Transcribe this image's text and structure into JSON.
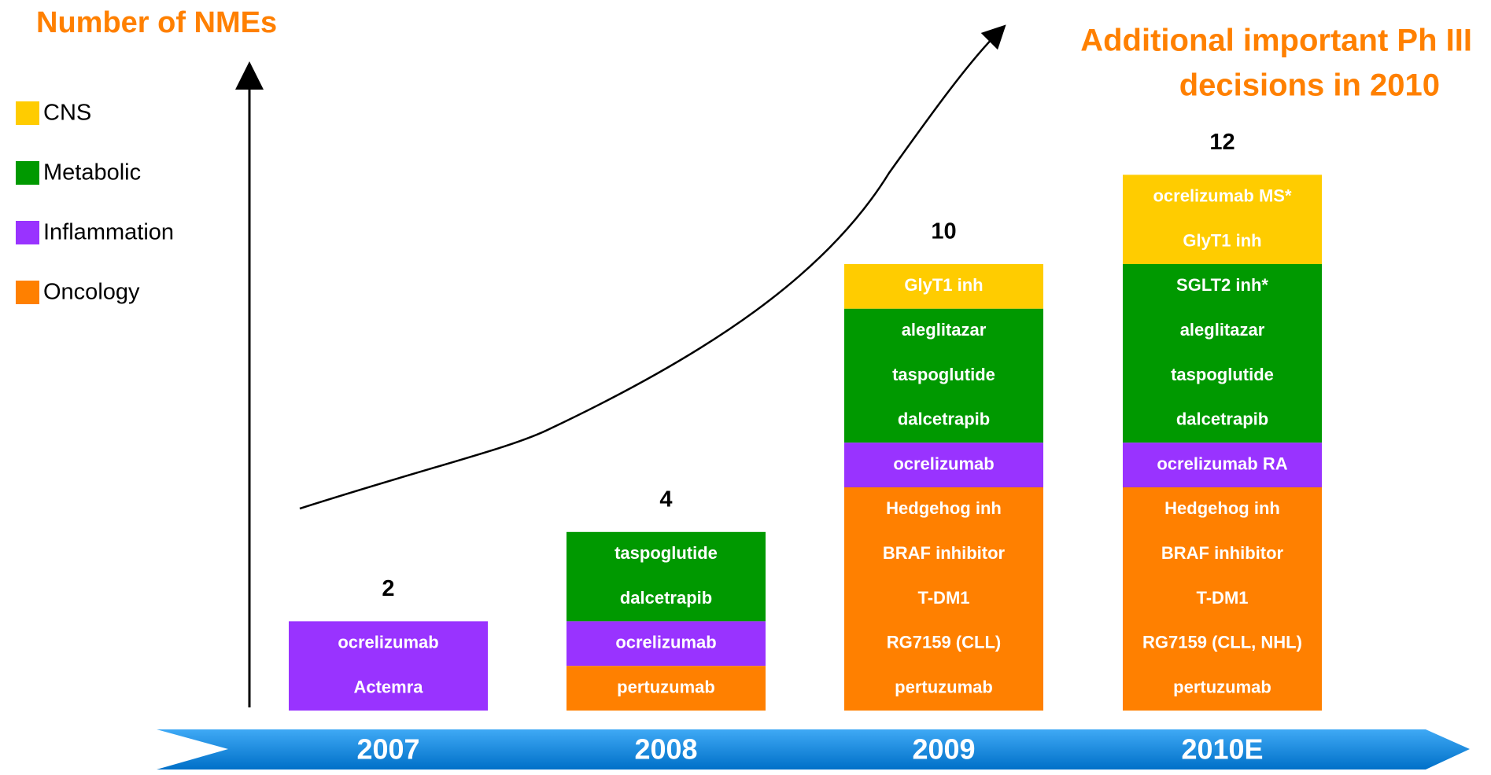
{
  "title": "Number of NMEs",
  "annotation": [
    "Additional important Ph III",
    "decisions in 2010"
  ],
  "legend": [
    {
      "label": "CNS",
      "color": "#ffcc00"
    },
    {
      "label": "Metabolic",
      "color": "#009900"
    },
    {
      "label": "Inflammation",
      "color": "#9933ff"
    },
    {
      "label": "Oncology",
      "color": "#ff8000"
    }
  ],
  "columns": [
    {
      "year": "2007",
      "total": 2,
      "segments": [
        {
          "group": "Inflammation",
          "items": [
            "ocrelizumab",
            "Actemra"
          ]
        }
      ]
    },
    {
      "year": "2008",
      "total": 4,
      "segments": [
        {
          "group": "Metabolic",
          "items": [
            "taspoglutide",
            "dalcetrapib"
          ]
        },
        {
          "group": "Inflammation",
          "items": [
            "ocrelizumab"
          ]
        },
        {
          "group": "Oncology",
          "items": [
            "pertuzumab"
          ]
        }
      ]
    },
    {
      "year": "2009",
      "total": 10,
      "segments": [
        {
          "group": "CNS",
          "items": [
            "GlyT1 inh"
          ]
        },
        {
          "group": "Metabolic",
          "items": [
            "aleglitazar",
            "taspoglutide",
            "dalcetrapib"
          ]
        },
        {
          "group": "Inflammation",
          "items": [
            "ocrelizumab"
          ]
        },
        {
          "group": "Oncology",
          "items": [
            "Hedgehog inh",
            "BRAF inhibitor",
            "T-DM1",
            "RG7159 (CLL)",
            "pertuzumab"
          ]
        }
      ]
    },
    {
      "year": "2010E",
      "total": 12,
      "segments": [
        {
          "group": "CNS",
          "items": [
            "ocrelizumab MS*",
            "GlyT1 inh"
          ]
        },
        {
          "group": "Metabolic",
          "items": [
            "SGLT2 inh*",
            "aleglitazar",
            "taspoglutide",
            "dalcetrapib"
          ]
        },
        {
          "group": "Inflammation",
          "items": [
            "ocrelizumab RA"
          ]
        },
        {
          "group": "Oncology",
          "items": [
            "Hedgehog inh",
            "BRAF inhibitor",
            "T-DM1",
            "RG7159 (CLL, NHL)",
            "pertuzumab"
          ]
        }
      ]
    }
  ]
}
